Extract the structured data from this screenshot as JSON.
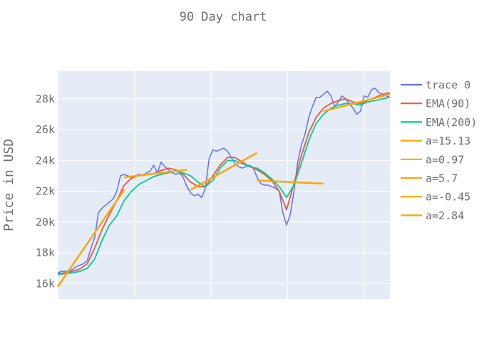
{
  "chart_data": {
    "type": "line",
    "title": "90 Day chart",
    "xlabel": "",
    "ylabel": "Price in USD",
    "x_range": [
      0,
      90
    ],
    "x_tick_labels": [],
    "ylim": [
      15000,
      29800
    ],
    "y_ticks": [
      16000,
      18000,
      20000,
      22000,
      24000,
      26000,
      28000
    ],
    "y_tick_labels": [
      "16k",
      "18k",
      "20k",
      "22k",
      "24k",
      "26k",
      "28k"
    ],
    "grid": true,
    "legend_position": "right",
    "colors": {
      "plot_bg": "#e5ecf6",
      "grid": "#ffffff",
      "price": "#636efa",
      "ema90": "#ef553b",
      "ema200": "#00cc96",
      "trend": "#ffa500"
    },
    "series": [
      {
        "name": "trace 0",
        "color": "#636efa",
        "x": [
          0,
          1,
          2,
          3,
          4,
          5,
          6,
          7,
          8,
          9,
          10,
          11,
          12,
          13,
          14,
          15,
          16,
          17,
          18,
          19,
          20,
          21,
          22,
          23,
          24,
          25,
          26,
          27,
          28,
          29,
          30,
          31,
          32,
          33,
          34,
          35,
          36,
          37,
          38,
          39,
          40,
          41,
          42,
          43,
          44,
          45,
          46,
          47,
          48,
          49,
          50,
          51,
          52,
          53,
          54,
          55,
          56,
          57,
          58,
          59,
          60,
          61,
          62,
          63,
          64,
          65,
          66,
          67,
          68,
          69,
          70,
          71,
          72,
          73,
          74,
          75,
          76,
          77,
          78,
          79,
          80,
          81,
          82,
          83,
          84,
          85,
          86,
          87,
          88,
          89,
          90
        ],
        "y": [
          16700,
          16800,
          16800,
          16850,
          16900,
          17100,
          17200,
          17300,
          17500,
          18300,
          19000,
          20600,
          20900,
          21100,
          21300,
          21500,
          22000,
          23000,
          23100,
          23000,
          22900,
          23000,
          23100,
          23000,
          23200,
          23300,
          23700,
          23200,
          23900,
          23600,
          23400,
          23200,
          23100,
          23200,
          22900,
          22300,
          21900,
          21700,
          21800,
          21600,
          22200,
          24100,
          24700,
          24600,
          24700,
          24800,
          24600,
          24200,
          23800,
          23600,
          23500,
          23600,
          23700,
          23500,
          22900,
          22500,
          22400,
          22400,
          22300,
          22200,
          22000,
          20600,
          19800,
          20500,
          22000,
          23900,
          25000,
          25700,
          26800,
          27500,
          28100,
          28100,
          28300,
          28500,
          28200,
          27500,
          27800,
          28200,
          28000,
          27700,
          27400,
          27000,
          27200,
          28200,
          28100,
          28600,
          28700,
          28400,
          28300,
          28200,
          28100
        ]
      },
      {
        "name": "EMA(90)",
        "color": "#ef553b",
        "x": [
          0,
          2,
          4,
          6,
          8,
          10,
          12,
          14,
          16,
          18,
          20,
          22,
          24,
          26,
          28,
          30,
          32,
          34,
          36,
          38,
          40,
          42,
          44,
          46,
          48,
          50,
          52,
          54,
          56,
          58,
          60,
          62,
          64,
          66,
          68,
          70,
          72,
          74,
          76,
          78,
          80,
          82,
          84,
          86,
          88,
          90
        ],
        "y": [
          16650,
          16700,
          16800,
          16950,
          17300,
          18300,
          19500,
          20500,
          21400,
          22400,
          22850,
          23050,
          23100,
          23150,
          23350,
          23500,
          23400,
          23100,
          22600,
          22300,
          22300,
          23000,
          23700,
          24200,
          24200,
          23900,
          23600,
          23400,
          23100,
          22700,
          22000,
          20800,
          22500,
          24300,
          25800,
          26800,
          27400,
          27700,
          27900,
          28000,
          27800,
          27700,
          27900,
          28100,
          28300,
          28400
        ]
      },
      {
        "name": "EMA(200)",
        "color": "#00cc96",
        "x": [
          0,
          2,
          4,
          6,
          8,
          10,
          12,
          14,
          16,
          18,
          20,
          22,
          24,
          26,
          28,
          30,
          32,
          34,
          36,
          38,
          40,
          42,
          44,
          46,
          48,
          50,
          52,
          54,
          56,
          58,
          60,
          62,
          64,
          66,
          68,
          70,
          72,
          74,
          76,
          78,
          80,
          82,
          84,
          86,
          88,
          90
        ],
        "y": [
          16600,
          16650,
          16700,
          16800,
          17000,
          17600,
          18800,
          19800,
          20400,
          21400,
          22000,
          22450,
          22700,
          22950,
          23100,
          23200,
          23300,
          23200,
          23000,
          22600,
          22300,
          22700,
          23500,
          24000,
          24000,
          23800,
          23600,
          23500,
          23200,
          22800,
          22300,
          21600,
          22400,
          23800,
          25300,
          26400,
          27000,
          27400,
          27600,
          27700,
          27700,
          27600,
          27800,
          27900,
          28000,
          28100
        ]
      }
    ],
    "trend_lines": [
      {
        "name": "a=15.13",
        "x": [
          0,
          18
        ],
        "y": [
          15800,
          22100
        ]
      },
      {
        "name": "a=0.97",
        "x": [
          18,
          35
        ],
        "y": [
          22900,
          23400
        ]
      },
      {
        "name": "a=5.7",
        "x": [
          36,
          54
        ],
        "y": [
          22100,
          24500
        ]
      },
      {
        "name": "a=-0.45",
        "x": [
          54,
          72
        ],
        "y": [
          22700,
          22500
        ]
      },
      {
        "name": "a=2.84",
        "x": [
          72,
          90
        ],
        "y": [
          27200,
          28300
        ]
      }
    ]
  }
}
